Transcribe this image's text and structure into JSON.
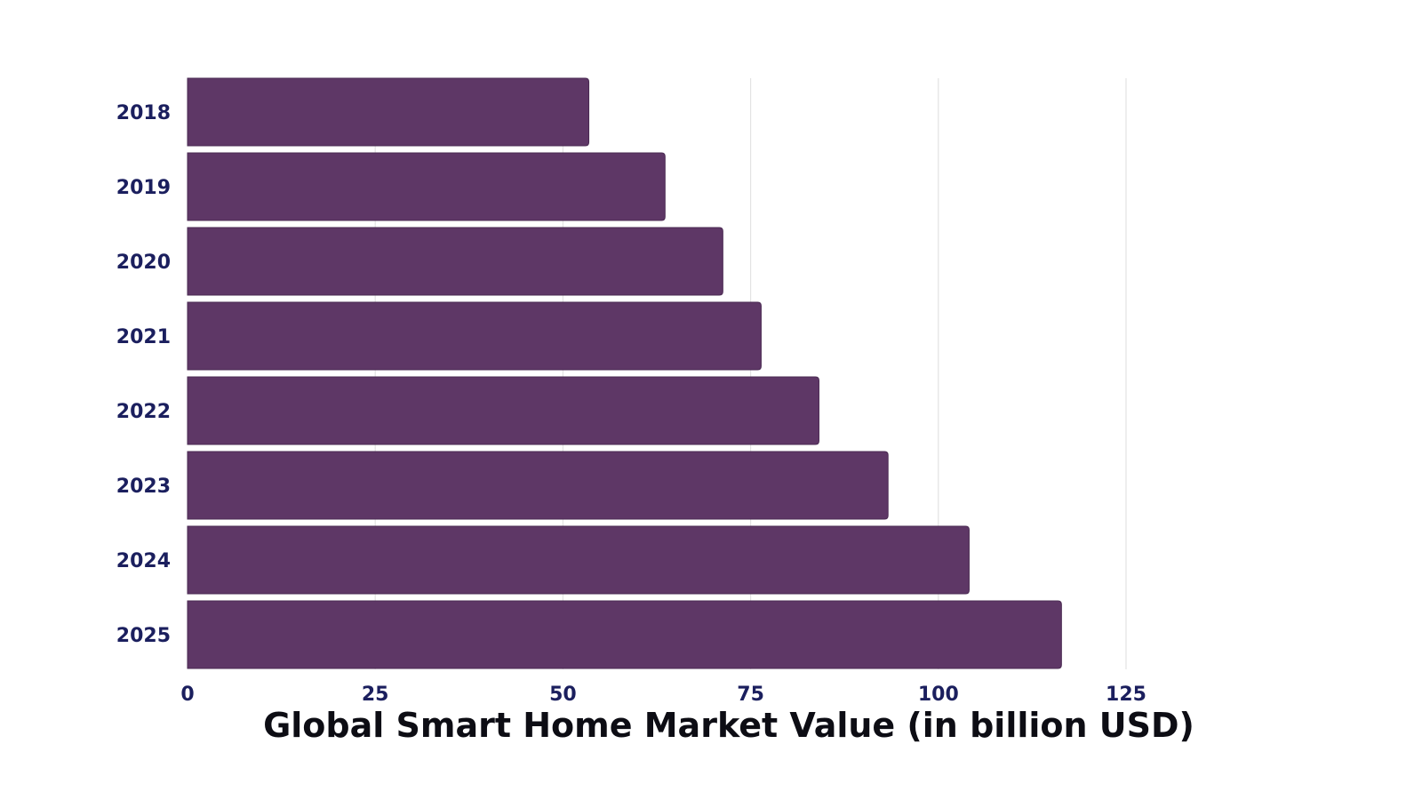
{
  "chart_data": {
    "type": "bar",
    "orientation": "horizontal",
    "title": "Global Smart Home Market Value (in billion USD)",
    "categories": [
      "2018",
      "2019",
      "2020",
      "2021",
      "2022",
      "2023",
      "2024",
      "2025"
    ],
    "values": [
      53.45,
      63.6,
      71.3,
      76.4,
      84.1,
      93.3,
      104.1,
      116.4
    ],
    "xlim": [
      0,
      125
    ],
    "xticks": [
      0,
      25,
      50,
      75,
      100,
      125
    ],
    "grid": "vertical",
    "legend": "none",
    "colors": {
      "bar": "#5e3766",
      "bar_edge": "#4a2a52",
      "grid": "#e3e3e3",
      "tick_text": "#1b1f5e",
      "title_text": "#0d0d14"
    }
  }
}
